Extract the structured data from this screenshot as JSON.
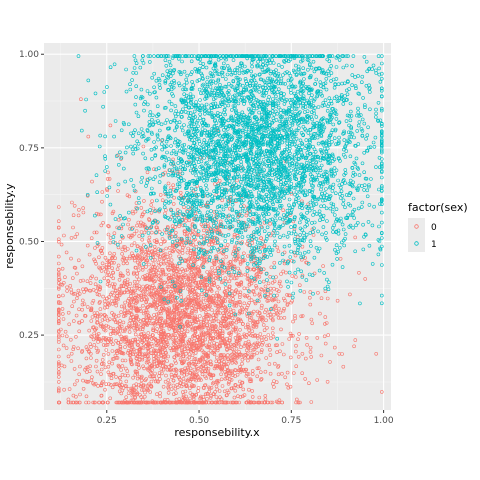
{
  "chart_data": {
    "type": "scatter",
    "title": "",
    "xlabel": "responsebility.x",
    "ylabel": "responsebility.y",
    "xlim": [
      0.08,
      1.02
    ],
    "ylim": [
      0.05,
      1.03
    ],
    "x_ticks": [
      0.25,
      0.5,
      0.75,
      1.0
    ],
    "x_tick_labels": [
      "0.25",
      "0.50",
      "0.75",
      "1.00"
    ],
    "y_ticks": [
      0.25,
      0.5,
      0.75,
      1.0
    ],
    "y_tick_labels": [
      "0.25",
      "0.50",
      "0.75",
      "1.00"
    ],
    "grid": true,
    "marker": "open-circle",
    "legend": {
      "title": "factor(sex)",
      "placement": "right"
    },
    "series": [
      {
        "name": "0",
        "color": "#F8766D",
        "center": [
          0.45,
          0.3
        ],
        "spread": [
          0.15,
          0.15
        ],
        "x": [
          0.13,
          0.16,
          0.18,
          0.2,
          0.22,
          0.24,
          0.26,
          0.28,
          0.3,
          0.32,
          0.34,
          0.36,
          0.38,
          0.4,
          0.42,
          0.44,
          0.46,
          0.48,
          0.5,
          0.52,
          0.54,
          0.56,
          0.58,
          0.6,
          0.62,
          0.64,
          0.66,
          0.68,
          0.7,
          0.72,
          0.74,
          0.76,
          0.78,
          0.8,
          0.82,
          0.85,
          0.88,
          0.92,
          0.95,
          0.98,
          0.17,
          0.21,
          0.25,
          0.29,
          0.33,
          0.37,
          0.41,
          0.45,
          0.49,
          0.53
        ],
        "y": [
          0.32,
          0.36,
          0.88,
          0.78,
          0.12,
          0.55,
          0.81,
          0.73,
          0.07,
          0.58,
          0.09,
          0.48,
          0.18,
          0.24,
          0.12,
          0.29,
          0.08,
          0.21,
          0.42,
          0.16,
          0.51,
          0.33,
          0.12,
          0.27,
          0.45,
          0.19,
          0.22,
          0.38,
          0.12,
          0.31,
          0.15,
          0.47,
          0.2,
          0.35,
          0.13,
          0.25,
          0.2,
          0.22,
          0.4,
          0.2,
          0.52,
          0.66,
          0.64,
          0.38,
          0.28,
          0.36,
          0.22,
          0.33,
          0.27,
          0.3
        ]
      },
      {
        "name": "1",
        "color": "#00BFC4",
        "center": [
          0.65,
          0.75
        ],
        "spread": [
          0.16,
          0.15
        ],
        "x": [
          0.2,
          0.24,
          0.27,
          0.3,
          0.33,
          0.36,
          0.39,
          0.42,
          0.45,
          0.48,
          0.51,
          0.54,
          0.57,
          0.6,
          0.63,
          0.66,
          0.69,
          0.72,
          0.75,
          0.78,
          0.81,
          0.84,
          0.87,
          0.9,
          0.93,
          0.96,
          0.99,
          0.35,
          0.4,
          0.44,
          0.5,
          0.55,
          0.6,
          0.65,
          0.7,
          0.76,
          0.82,
          0.88,
          0.94,
          0.98
        ],
        "y": [
          0.93,
          0.86,
          0.78,
          0.66,
          0.95,
          0.58,
          0.84,
          0.98,
          0.72,
          0.91,
          0.62,
          0.88,
          0.99,
          0.75,
          0.68,
          0.97,
          0.81,
          0.59,
          0.92,
          0.73,
          0.98,
          0.66,
          0.85,
          0.97,
          0.55,
          0.96,
          0.6,
          0.44,
          0.52,
          0.35,
          0.48,
          0.7,
          0.85,
          0.4,
          0.78,
          0.5,
          0.9,
          0.65,
          0.8,
          0.95
        ]
      }
    ]
  }
}
